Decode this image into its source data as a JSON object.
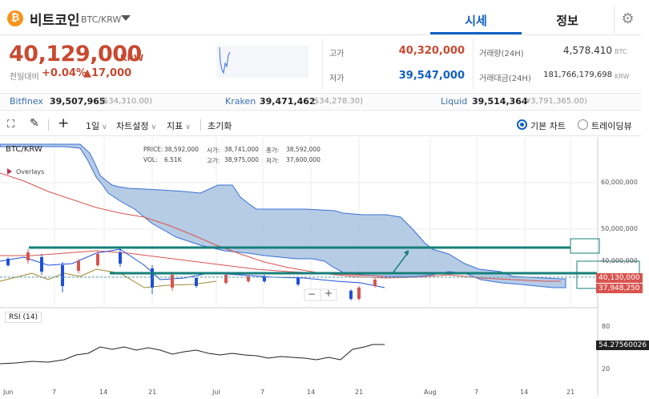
{
  "header": {
    "coin_icon": "bitcoin-icon",
    "coin_symbol_glyph": "₿",
    "coin_name": "비트코인",
    "pair": "BTC/KRW",
    "tabs": [
      {
        "label": "시세",
        "active": true
      },
      {
        "label": "정보",
        "active": false
      }
    ],
    "settings_icon": "gear-icon"
  },
  "ticker": {
    "price": "40,129,000",
    "unit": "KRW",
    "prev_label": "전일대비",
    "change_pct": "+0.04%",
    "change_abs": "▲17,000",
    "high_label": "고가",
    "high": "40,320,000",
    "low_label": "저가",
    "low": "39,547,000",
    "volume_label": "거래량(24H)",
    "volume": "4,578.410",
    "volume_unit": "BTC",
    "amount_label": "거래대금(24H)",
    "amount": "181,766,179,698",
    "amount_unit": "KRW",
    "colors": {
      "up": "#c84a31",
      "down": "#1261c4"
    }
  },
  "exchanges": [
    {
      "name": "Bitfinex",
      "price": "39,507,965",
      "usd": "($34,310.00)"
    },
    {
      "name": "Kraken",
      "price": "39,471,462",
      "usd": "($34,278.30)"
    },
    {
      "name": "Liquid",
      "price": "39,514,364",
      "usd": "(¥3,791,365.00)"
    }
  ],
  "toolbar": {
    "fullscreen_icon": "fullscreen-icon",
    "draw_icon": "pencil-icon",
    "crosshair_icon": "crosshair-icon",
    "interval": "1일",
    "chart_settings": "차트설정",
    "indicators": "지표",
    "reset": "초기화",
    "views": [
      {
        "label": "기본 차트",
        "selected": true
      },
      {
        "label": "트레이딩뷰",
        "selected": false
      }
    ]
  },
  "chart": {
    "symbol": "BTC/KRW",
    "overlays_label": "Overlays",
    "info": {
      "price_label": "PRICE:",
      "price": "38,592,000",
      "open_label": "시가:",
      "open": "38,741,000",
      "close_label": "종가:",
      "close": "38,592,000",
      "vol_label": "VOL:",
      "vol": "6.51K",
      "high_label": "고가:",
      "high": "38,975,000",
      "low_label": "저가:",
      "low": "37,600,000"
    },
    "y_axis": [
      "60,000,000",
      "50,000,000",
      "40,000,000"
    ],
    "price_tags": [
      {
        "value": "40,130,000",
        "color": "#d9534f"
      },
      {
        "value": "37,948,250",
        "color": "#d9534f"
      }
    ],
    "x_axis": [
      "Jun",
      "7",
      "14",
      "21",
      "Jul",
      "7",
      "14",
      "21",
      "Aug",
      "7",
      "14",
      "21"
    ],
    "rsi_label": "RSI (14)",
    "rsi_axis": [
      "80",
      "20"
    ],
    "rsi_value": "54.27560026"
  }
}
